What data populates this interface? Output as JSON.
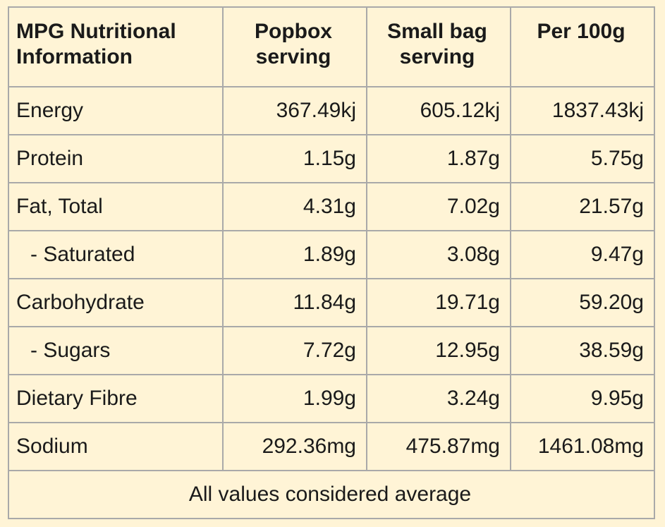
{
  "table": {
    "headers": [
      {
        "line1": "MPG Nutritional",
        "line2": "Information"
      },
      {
        "line1": "Popbox",
        "line2": "serving"
      },
      {
        "line1": "Small bag",
        "line2": "serving"
      },
      {
        "line1": "Per 100g",
        "line2": ""
      }
    ],
    "rows": [
      {
        "label": "Energy",
        "popbox": "367.49kj",
        "small_bag": "605.12kj",
        "per_100g": "1837.43kj"
      },
      {
        "label": "Protein",
        "popbox": "1.15g",
        "small_bag": "1.87g",
        "per_100g": "5.75g"
      },
      {
        "label": "Fat, Total",
        "popbox": "4.31g",
        "small_bag": "7.02g",
        "per_100g": "21.57g"
      },
      {
        "label": "- Saturated",
        "popbox": "1.89g",
        "small_bag": "3.08g",
        "per_100g": "9.47g"
      },
      {
        "label": "Carbohydrate",
        "popbox": "11.84g",
        "small_bag": "19.71g",
        "per_100g": "59.20g"
      },
      {
        "label": "- Sugars",
        "popbox": "7.72g",
        "small_bag": "12.95g",
        "per_100g": "38.59g"
      },
      {
        "label": "Dietary Fibre",
        "popbox": "1.99g",
        "small_bag": "3.24g",
        "per_100g": "9.95g"
      },
      {
        "label": "Sodium",
        "popbox": "292.36mg",
        "small_bag": "475.87mg",
        "per_100g": "1461.08mg"
      }
    ],
    "footer": "All values considered average"
  },
  "colors": {
    "background": "#fff4d6",
    "border": "#a9a9a9",
    "text": "#1a1a1a"
  }
}
